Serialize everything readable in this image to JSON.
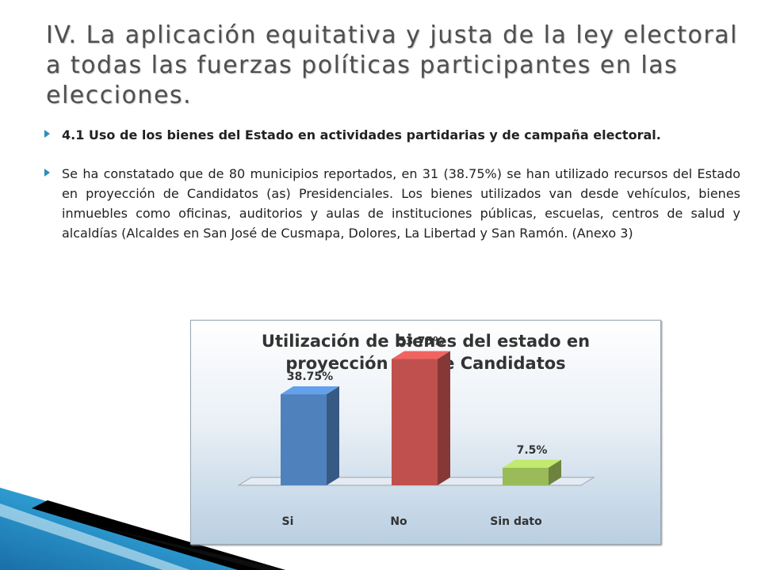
{
  "slide": {
    "title": "IV. La aplicación equitativa y justa de la ley electoral a todas las fuerzas políticas participantes en las elecciones.",
    "bullets": [
      "4.1 Uso de los bienes del Estado en actividades partidarias y de campaña electoral.",
      "Se ha constatado que de 80 municipios reportados, en 31 (38.75%) se han utilizado recursos del Estado en proyección de Candidatos (as) Presidenciales. Los bienes utilizados van desde vehículos, bienes inmuebles como oficinas, auditorios y aulas de instituciones públicas, escuelas, centros de salud y alcaldías (Alcaldes en San José de Cusmapa, Dolores, La Libertad y San Ramón. (Anexo 3)"
    ]
  },
  "chart_data": {
    "type": "bar",
    "title_line1": "Utilización de bienes del estado en",
    "title_line2": "proyección de Pre Candidatos",
    "categories": [
      "Si",
      "No",
      "Sin dato"
    ],
    "values": [
      38.75,
      53.75,
      7.5
    ],
    "data_labels": [
      "38.75%",
      "53.75%",
      "7.5%"
    ],
    "colors": [
      "#4f81bd",
      "#c0504d",
      "#9bbb59"
    ],
    "ylim": [
      0,
      60
    ],
    "three_d": true,
    "grid": false
  }
}
